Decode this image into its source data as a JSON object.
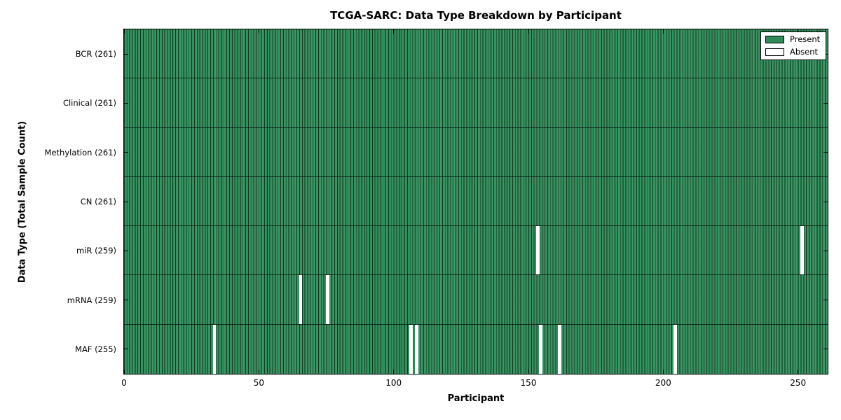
{
  "title": "TCGA-SARC: Data Type Breakdown by Participant",
  "xlabel": "Participant",
  "ylabel": "Data Type (Total Sample Count)",
  "colors": {
    "present": "#2e8b57",
    "absent": "#ffffff",
    "axis": "#000000"
  },
  "legend": {
    "items": [
      {
        "label": "Present",
        "color": "#2e8b57"
      },
      {
        "label": "Absent",
        "color": "#ffffff"
      }
    ]
  },
  "chart_data": {
    "type": "heatmap",
    "title": "TCGA-SARC: Data Type Breakdown by Participant",
    "xlabel": "Participant",
    "ylabel": "Data Type (Total Sample Count)",
    "n_participants": 261,
    "xlim": [
      0,
      261
    ],
    "x_ticks": [
      0,
      50,
      100,
      150,
      200,
      250
    ],
    "legend_position": "upper right",
    "rows": [
      {
        "label": "BCR (261)",
        "data_type": "BCR",
        "total": 261,
        "absent_participants": []
      },
      {
        "label": "Clinical (261)",
        "data_type": "Clinical",
        "total": 261,
        "absent_participants": []
      },
      {
        "label": "Methylation (261)",
        "data_type": "Methylation",
        "total": 261,
        "absent_participants": []
      },
      {
        "label": "CN (261)",
        "data_type": "CN",
        "total": 261,
        "absent_participants": []
      },
      {
        "label": "miR (259)",
        "data_type": "miR",
        "total": 259,
        "absent_participants": [
          153,
          251
        ]
      },
      {
        "label": "mRNA (259)",
        "data_type": "mRNA",
        "total": 259,
        "absent_participants": [
          65,
          75
        ]
      },
      {
        "label": "MAF (255)",
        "data_type": "MAF",
        "total": 255,
        "absent_participants": [
          33,
          106,
          108,
          154,
          161,
          204
        ]
      }
    ]
  }
}
